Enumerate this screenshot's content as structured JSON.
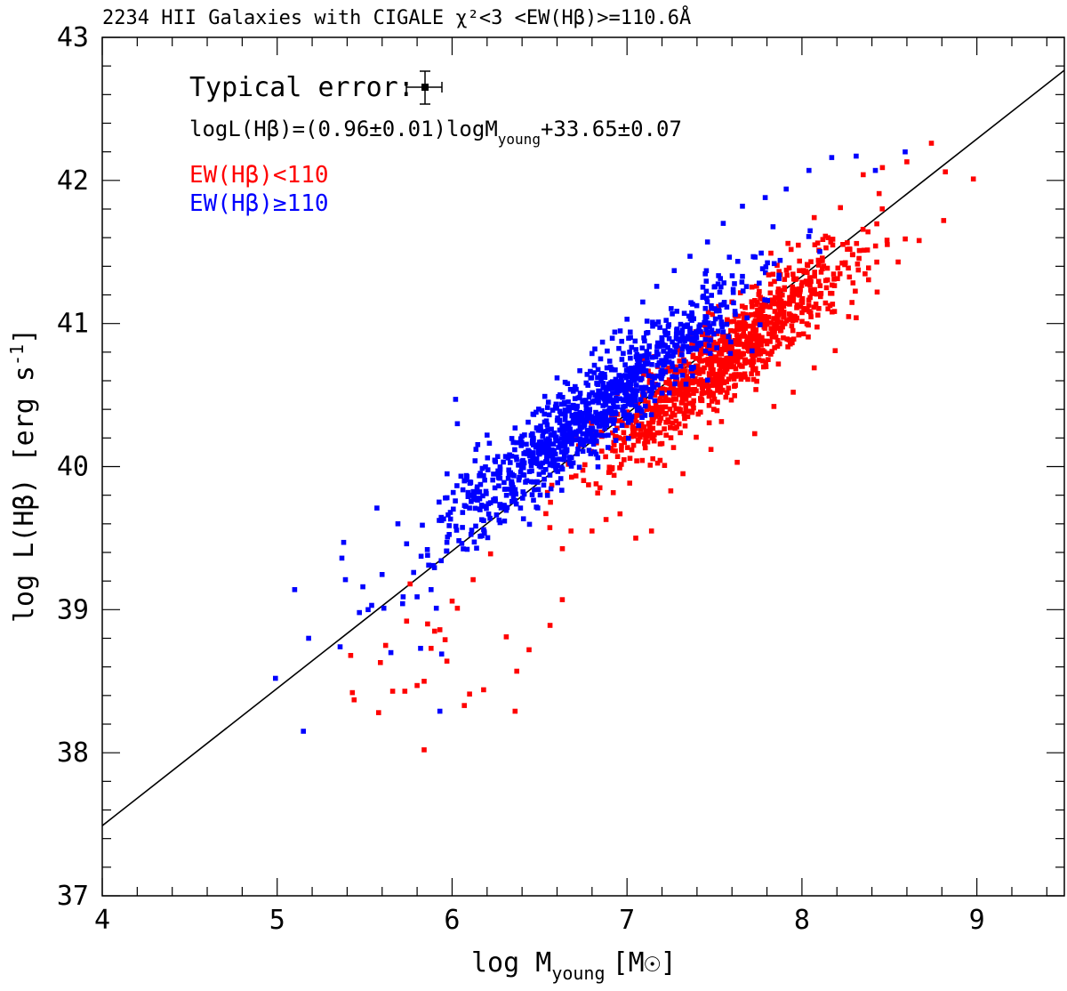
{
  "chart_data": {
    "type": "scatter",
    "title": "2234 HII Galaxies with CIGALE χ²<3 <EW(Hβ)>=110.6Å",
    "xlabel": {
      "main": "log M",
      "sub": "young",
      "unit": "[M",
      "unit_symbol": "☉",
      "unit_close": "]"
    },
    "ylabel": {
      "main": "log L(Hβ) [erg s",
      "sup": "-1",
      "close": "]"
    },
    "xlim": [
      4,
      9.5
    ],
    "ylim": [
      37,
      43
    ],
    "x_ticks": [
      "4",
      "5",
      "6",
      "7",
      "8",
      "9"
    ],
    "y_ticks": [
      "37",
      "38",
      "39",
      "40",
      "41",
      "42",
      "43"
    ],
    "annotations": {
      "typical_error": "Typical error:",
      "equation_main": "logL(Hβ)=(0.96±0.01)logM",
      "equation_sub": "young",
      "equation_tail": "+33.65±0.07"
    },
    "fit_line": {
      "slope": 0.96,
      "intercept": 33.65,
      "x_range": [
        4,
        9.5
      ]
    },
    "series": [
      {
        "name": "EW(Hβ)<110",
        "color": "#ff0000",
        "points": [
          [
            5.42,
            38.68
          ],
          [
            5.43,
            38.42
          ],
          [
            5.44,
            38.37
          ],
          [
            5.58,
            38.28
          ],
          [
            5.59,
            38.63
          ],
          [
            5.62,
            38.75
          ],
          [
            5.66,
            38.43
          ],
          [
            5.73,
            38.43
          ],
          [
            5.74,
            38.92
          ],
          [
            5.76,
            39.18
          ],
          [
            5.8,
            38.47
          ],
          [
            5.84,
            38.02
          ],
          [
            5.84,
            38.5
          ],
          [
            5.86,
            38.9
          ],
          [
            5.88,
            38.73
          ],
          [
            5.9,
            38.85
          ],
          [
            5.93,
            38.86
          ],
          [
            5.96,
            38.79
          ],
          [
            5.97,
            38.64
          ],
          [
            6.0,
            39.06
          ],
          [
            6.03,
            39.01
          ],
          [
            6.07,
            38.33
          ],
          [
            6.1,
            38.41
          ],
          [
            6.12,
            39.21
          ],
          [
            6.18,
            38.44
          ],
          [
            6.22,
            39.39
          ],
          [
            6.31,
            38.81
          ],
          [
            6.36,
            38.29
          ],
          [
            6.37,
            38.57
          ],
          [
            6.44,
            38.72
          ],
          [
            6.56,
            38.89
          ],
          [
            6.63,
            39.07
          ],
          [
            6.68,
            39.55
          ],
          [
            6.8,
            39.55
          ],
          [
            6.88,
            39.63
          ],
          [
            6.96,
            39.67
          ],
          [
            7.05,
            39.5
          ],
          [
            7.14,
            39.55
          ],
          [
            7.25,
            39.83
          ],
          [
            7.32,
            39.95
          ],
          [
            7.48,
            40.12
          ],
          [
            7.63,
            40.03
          ],
          [
            7.73,
            40.23
          ],
          [
            7.84,
            40.42
          ],
          [
            7.95,
            40.52
          ],
          [
            8.07,
            40.69
          ],
          [
            8.19,
            40.81
          ],
          [
            8.31,
            41.04
          ],
          [
            8.43,
            41.22
          ],
          [
            8.55,
            41.43
          ],
          [
            8.67,
            41.58
          ],
          [
            8.81,
            41.72
          ],
          [
            8.98,
            42.01
          ],
          [
            8.82,
            42.06
          ],
          [
            8.74,
            42.26
          ],
          [
            8.6,
            42.13
          ],
          [
            8.46,
            42.09
          ],
          [
            8.35,
            42.04
          ],
          [
            8.22,
            41.81
          ],
          [
            8.15,
            41.6
          ],
          [
            8.07,
            41.74
          ],
          [
            7.92,
            41.56
          ],
          [
            7.81,
            41.34
          ]
        ]
      },
      {
        "name": "EW(Hβ)≥110",
        "color": "#0000ff",
        "points": [
          [
            4.99,
            38.52
          ],
          [
            5.1,
            39.14
          ],
          [
            5.15,
            38.15
          ],
          [
            5.18,
            38.8
          ],
          [
            5.36,
            38.74
          ],
          [
            5.37,
            39.36
          ],
          [
            5.38,
            39.47
          ],
          [
            5.39,
            39.21
          ],
          [
            5.47,
            38.98
          ],
          [
            5.49,
            39.16
          ],
          [
            5.52,
            39.0
          ],
          [
            5.54,
            39.03
          ],
          [
            5.57,
            39.71
          ],
          [
            5.61,
            39.01
          ],
          [
            5.65,
            38.7
          ],
          [
            5.69,
            39.6
          ],
          [
            5.72,
            39.09
          ],
          [
            5.74,
            39.46
          ],
          [
            5.78,
            39.26
          ],
          [
            5.8,
            39.09
          ],
          [
            5.82,
            38.73
          ],
          [
            5.83,
            39.59
          ],
          [
            5.86,
            39.38
          ],
          [
            5.88,
            39.14
          ],
          [
            5.91,
            39.01
          ],
          [
            5.93,
            38.29
          ],
          [
            5.94,
            38.69
          ],
          [
            5.97,
            39.47
          ],
          [
            5.99,
            39.68
          ],
          [
            6.02,
            40.47
          ],
          [
            6.03,
            40.3
          ],
          [
            6.07,
            39.9
          ],
          [
            6.1,
            39.71
          ],
          [
            6.14,
            39.43
          ],
          [
            6.2,
            40.22
          ],
          [
            6.26,
            39.95
          ],
          [
            6.32,
            40.06
          ],
          [
            6.36,
            40.27
          ],
          [
            6.42,
            40.1
          ],
          [
            6.48,
            40.38
          ],
          [
            6.55,
            40.45
          ],
          [
            6.6,
            40.62
          ],
          [
            6.66,
            40.58
          ],
          [
            6.73,
            40.67
          ],
          [
            6.8,
            40.79
          ],
          [
            6.86,
            40.87
          ],
          [
            6.93,
            40.94
          ],
          [
            7.0,
            41.03
          ],
          [
            7.09,
            41.15
          ],
          [
            7.17,
            41.26
          ],
          [
            7.27,
            41.37
          ],
          [
            7.36,
            41.47
          ],
          [
            7.46,
            41.57
          ],
          [
            7.55,
            41.7
          ],
          [
            7.66,
            41.82
          ],
          [
            7.79,
            41.88
          ],
          [
            7.91,
            41.94
          ],
          [
            8.04,
            42.07
          ],
          [
            8.17,
            42.16
          ],
          [
            8.31,
            42.17
          ],
          [
            8.42,
            42.07
          ],
          [
            8.59,
            42.2
          ]
        ]
      }
    ]
  }
}
